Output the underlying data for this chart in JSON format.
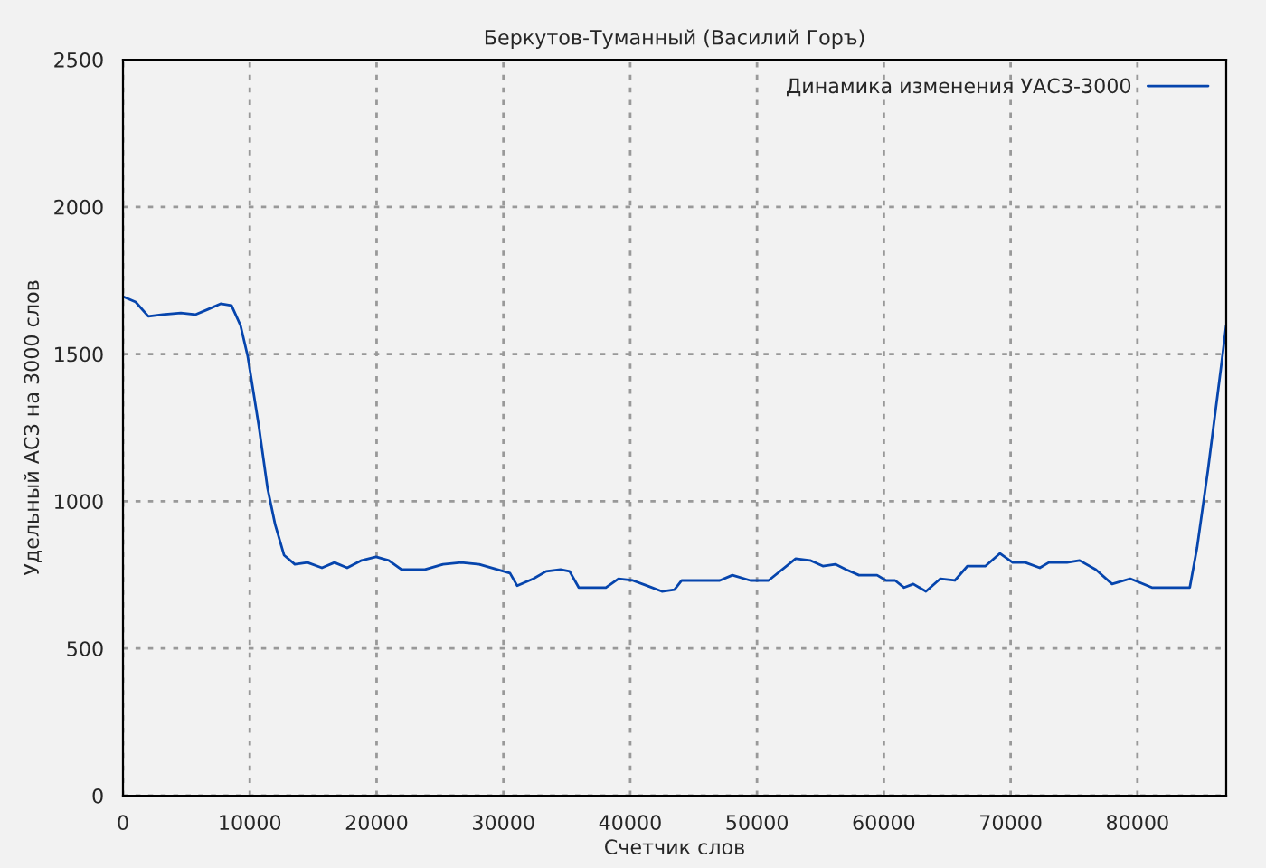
{
  "chart_data": {
    "type": "line",
    "title": "Беркутов-Туманный (Василий Горъ)",
    "xlabel": "Счетчик слов",
    "ylabel": "Удельный АСЗ на 3000 слов",
    "x": [
      0,
      1000,
      2000,
      3140,
      4560,
      5700,
      6700,
      7700,
      8560,
      9270,
      9840,
      10700,
      11400,
      12000,
      12700,
      13550,
      14550,
      15690,
      16680,
      17680,
      18820,
      19960,
      20960,
      21960,
      23810,
      25240,
      26670,
      28090,
      29520,
      30520,
      31090,
      32370,
      33370,
      34510,
      35220,
      35940,
      38080,
      39070,
      40210,
      41350,
      42500,
      43490,
      44060,
      47060,
      48060,
      49480,
      50910,
      53050,
      54190,
      55190,
      56180,
      57040,
      58040,
      59470,
      60180,
      60890,
      61600,
      62320,
      63320,
      64460,
      65600,
      66600,
      68020,
      69160,
      70160,
      71160,
      72300,
      73010,
      74440,
      75440,
      76720,
      78000,
      79430,
      80140,
      81140,
      82990,
      84130,
      84700,
      85560,
      86560,
      87000
    ],
    "series": [
      {
        "name": "Динамика изменения УАСЗ-3000",
        "color": "#0645ad",
        "values": [
          1695,
          1677,
          1628,
          1634,
          1640,
          1634,
          1652,
          1671,
          1665,
          1597,
          1492,
          1259,
          1044,
          921,
          817,
          786,
          792,
          774,
          792,
          774,
          799,
          811,
          799,
          768,
          768,
          786,
          792,
          786,
          768,
          756,
          713,
          737,
          762,
          768,
          762,
          707,
          707,
          737,
          731,
          713,
          694,
          700,
          731,
          731,
          749,
          731,
          731,
          805,
          799,
          780,
          786,
          768,
          749,
          749,
          731,
          731,
          707,
          719,
          694,
          737,
          731,
          780,
          780,
          823,
          792,
          792,
          774,
          792,
          792,
          799,
          768,
          719,
          737,
          725,
          707,
          707,
          707,
          842,
          1106,
          1444,
          1597
        ]
      }
    ],
    "xlim": [
      0,
      87000
    ],
    "ylim": [
      0,
      2500
    ],
    "xticks": [
      0,
      10000,
      20000,
      30000,
      40000,
      50000,
      60000,
      70000,
      80000
    ],
    "yticks": [
      0,
      500,
      1000,
      1500,
      2000,
      2500
    ],
    "grid": true,
    "legend": "top right",
    "line_style": "solid",
    "marker": "none"
  }
}
